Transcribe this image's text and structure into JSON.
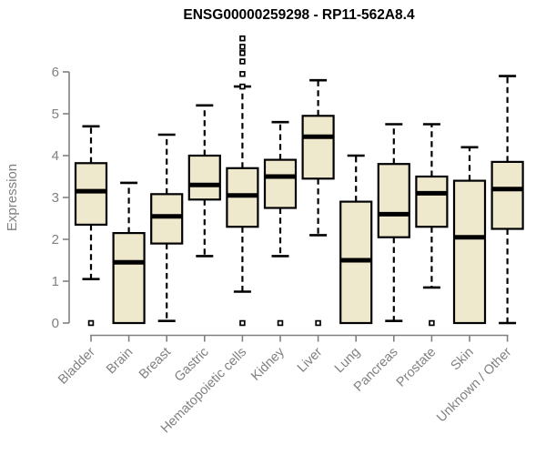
{
  "chart_data": {
    "type": "boxplot",
    "title": "ENSG00000259298 - RP11-562A8.4",
    "xlabel": "",
    "ylabel": "Expression",
    "ylim": [
      0,
      6
    ],
    "yticks": [
      0,
      1,
      2,
      3,
      4,
      5,
      6
    ],
    "grid": false,
    "legend": "none",
    "colors": {
      "box_fill": "#EEE8CD",
      "box_stroke": "#000000",
      "axis": "#808080",
      "tick_label": "#808080",
      "title": "#000000",
      "background": "#ffffff",
      "outlier_fill": "#ffffff"
    },
    "categories": [
      "Bladder",
      "Brain",
      "Breast",
      "Gastric",
      "Hematopoietic cells",
      "Kidney",
      "Liver",
      "Lung",
      "Pancreas",
      "Prostate",
      "Skin",
      "Unknown / Other"
    ],
    "series": [
      {
        "category": "Bladder",
        "whisker_low": 1.05,
        "q1": 2.35,
        "median": 3.15,
        "q3": 3.82,
        "whisker_high": 4.7,
        "outliers": [
          0
        ]
      },
      {
        "category": "Brain",
        "whisker_low": 0,
        "q1": 0,
        "median": 1.45,
        "q3": 2.15,
        "whisker_high": 3.35,
        "outliers": []
      },
      {
        "category": "Breast",
        "whisker_low": 0.05,
        "q1": 1.9,
        "median": 2.55,
        "q3": 3.08,
        "whisker_high": 4.5,
        "outliers": []
      },
      {
        "category": "Gastric",
        "whisker_low": 1.6,
        "q1": 2.95,
        "median": 3.3,
        "q3": 4.0,
        "whisker_high": 5.2,
        "outliers": []
      },
      {
        "category": "Hematopoietic cells",
        "whisker_low": 0.75,
        "q1": 2.3,
        "median": 3.05,
        "q3": 3.7,
        "whisker_high": 5.65,
        "outliers": [
          6.8,
          6.6,
          6.45,
          6.25,
          5.95,
          5.65,
          0
        ]
      },
      {
        "category": "Kidney",
        "whisker_low": 1.6,
        "q1": 2.75,
        "median": 3.5,
        "q3": 3.9,
        "whisker_high": 4.8,
        "outliers": [
          0
        ]
      },
      {
        "category": "Liver",
        "whisker_low": 2.1,
        "q1": 3.45,
        "median": 4.45,
        "q3": 4.95,
        "whisker_high": 5.8,
        "outliers": [
          0
        ]
      },
      {
        "category": "Lung",
        "whisker_low": 0,
        "q1": 0,
        "median": 1.5,
        "q3": 2.9,
        "whisker_high": 4.0,
        "outliers": []
      },
      {
        "category": "Pancreas",
        "whisker_low": 0.05,
        "q1": 2.05,
        "median": 2.6,
        "q3": 3.8,
        "whisker_high": 4.75,
        "outliers": []
      },
      {
        "category": "Prostate",
        "whisker_low": 0.85,
        "q1": 2.3,
        "median": 3.1,
        "q3": 3.5,
        "whisker_high": 4.75,
        "outliers": [
          0
        ]
      },
      {
        "category": "Skin",
        "whisker_low": 0,
        "q1": 0,
        "median": 2.05,
        "q3": 3.4,
        "whisker_high": 4.2,
        "outliers": []
      },
      {
        "category": "Unknown / Other",
        "whisker_low": 0,
        "q1": 2.25,
        "median": 3.2,
        "q3": 3.85,
        "whisker_high": 5.9,
        "outliers": []
      }
    ]
  }
}
